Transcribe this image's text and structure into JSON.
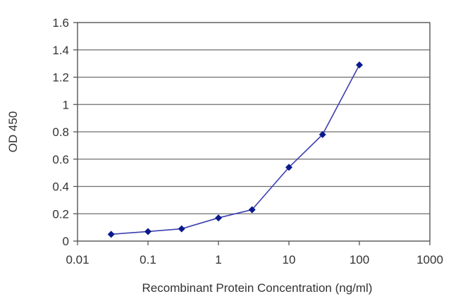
{
  "chart_data": {
    "type": "line",
    "title": "",
    "xlabel": "Recombinant Protein Concentration (ng/ml)",
    "ylabel": "OD 450",
    "x_scale": "log",
    "xlim": [
      0.01,
      1000
    ],
    "ylim": [
      0,
      1.6
    ],
    "x_ticks": [
      0.01,
      0.1,
      1,
      10,
      100,
      1000
    ],
    "x_tick_labels": [
      "0.01",
      "0.1",
      "1",
      "10",
      "100",
      "1000"
    ],
    "y_ticks": [
      0,
      0.2,
      0.4,
      0.6,
      0.8,
      1,
      1.2,
      1.4,
      1.6
    ],
    "y_tick_labels": [
      "0",
      "0.2",
      "0.4",
      "0.6",
      "0.8",
      "1",
      "1.2",
      "1.4",
      "1.6"
    ],
    "grid": {
      "horizontal": true,
      "vertical": false
    },
    "legend": "none",
    "series": [
      {
        "x": [
          0.03,
          0.1,
          0.3,
          1,
          3,
          10,
          30,
          100
        ],
        "y": [
          0.05,
          0.07,
          0.09,
          0.17,
          0.23,
          0.54,
          0.78,
          1.29
        ],
        "color": "#3b3fb0",
        "marker": "diamond",
        "marker_color": "#0a1a8c"
      }
    ]
  }
}
